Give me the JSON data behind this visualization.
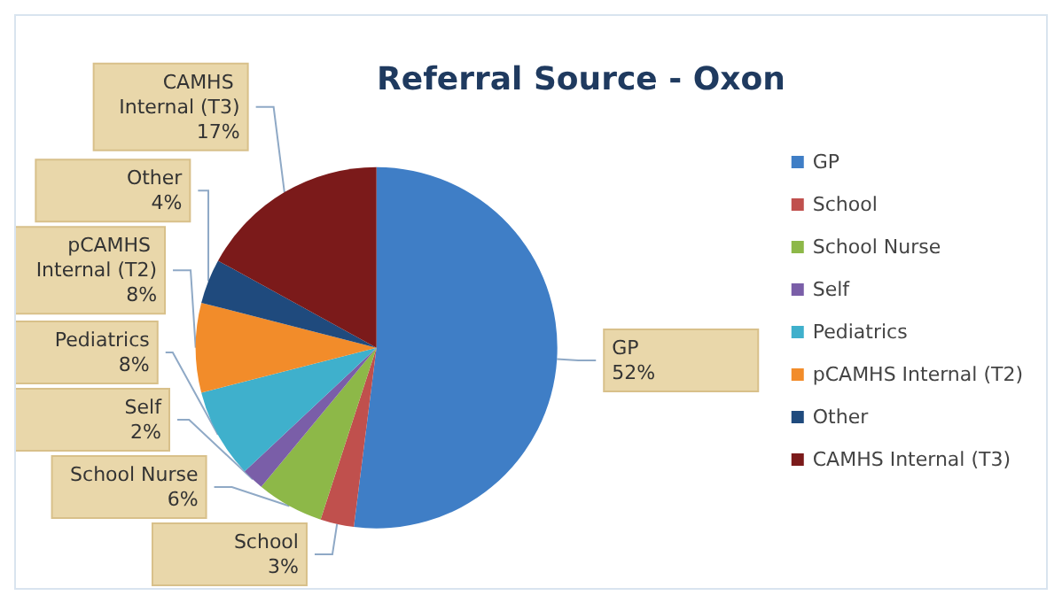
{
  "chart_data": {
    "type": "pie",
    "title": "Referral Source - Oxon",
    "categories": [
      "GP",
      "School",
      "School Nurse",
      "Self",
      "Pediatrics",
      "pCAMHS Internal (T2)",
      "Other",
      "CAMHS Internal (T3)"
    ],
    "values": [
      52,
      3,
      6,
      2,
      8,
      8,
      4,
      17
    ],
    "value_labels": [
      "52%",
      "3%",
      "6%",
      "2%",
      "8%",
      "8%",
      "4%",
      "17%"
    ],
    "colors": [
      "#3f7ec6",
      "#c0504d",
      "#8db848",
      "#7a5ea8",
      "#3fb0cc",
      "#f28c2a",
      "#1f4a7d",
      "#7b1a1a"
    ],
    "legend": "right"
  }
}
